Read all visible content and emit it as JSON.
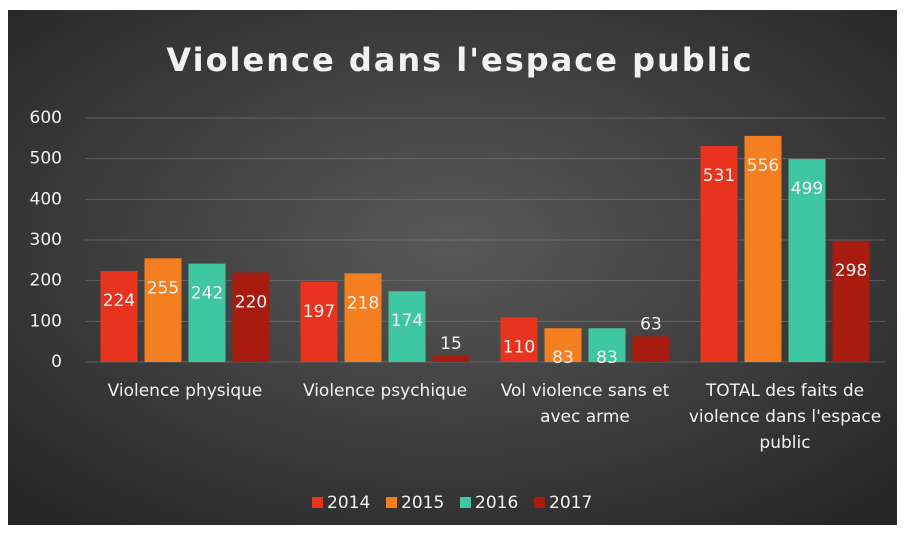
{
  "chart_data": {
    "type": "bar",
    "title": "Violence dans l'espace public",
    "categories": [
      "Violence physique",
      "Violence psychique",
      "Vol violence sans et avec arme",
      "TOTAL des faits de violence dans l'espace public"
    ],
    "series": [
      {
        "name": "2014",
        "color": "#e8341f",
        "values": [
          224,
          197,
          110,
          531
        ]
      },
      {
        "name": "2015",
        "color": "#f47f20",
        "values": [
          255,
          218,
          83,
          556
        ]
      },
      {
        "name": "2016",
        "color": "#3fc7a2",
        "values": [
          242,
          174,
          83,
          499
        ]
      },
      {
        "name": "2017",
        "color": "#a81b0f",
        "values": [
          220,
          15,
          63,
          298
        ]
      }
    ],
    "ylim": [
      0,
      600
    ],
    "yticks": [
      0,
      100,
      200,
      300,
      400,
      500,
      600
    ],
    "grid": true,
    "legend": "bottom"
  }
}
